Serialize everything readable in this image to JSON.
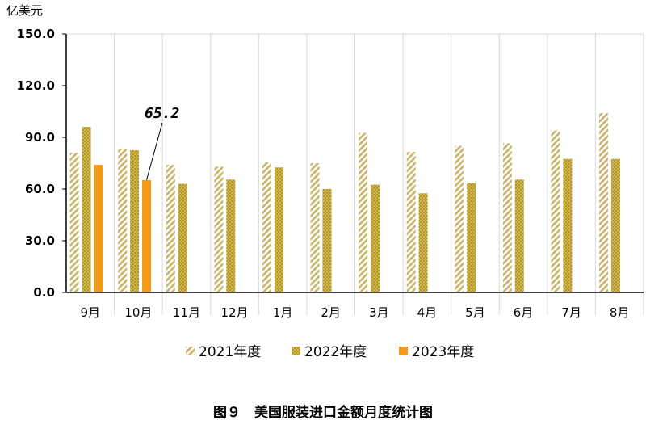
{
  "chart_data": {
    "type": "bar",
    "unit_label": "亿美元",
    "categories": [
      "9月",
      "10月",
      "11月",
      "12月",
      "1月",
      "2月",
      "3月",
      "4月",
      "5月",
      "6月",
      "7月",
      "8月"
    ],
    "series": [
      {
        "name": "2021年度",
        "values": [
          81,
          83.5,
          74,
          73,
          75.5,
          75,
          92.5,
          81.5,
          85,
          86.5,
          94,
          104
        ],
        "color": "#c9b46a",
        "pattern": "diagonal-stripes"
      },
      {
        "name": "2022年度",
        "values": [
          96,
          82.5,
          63,
          65.5,
          72.5,
          60,
          62.5,
          57.5,
          63.5,
          65.5,
          77.5,
          77.5
        ],
        "color": "#b8971e",
        "pattern": "dotted"
      },
      {
        "name": "2023年度",
        "values": [
          74,
          65.2,
          null,
          null,
          null,
          null,
          null,
          null,
          null,
          null,
          null,
          null
        ],
        "color": "#f39a1a",
        "pattern": "solid"
      }
    ],
    "yticks": [
      "0.0",
      "30.0",
      "60.0",
      "90.0",
      "120.0",
      "150.0"
    ],
    "ylim": [
      0,
      150
    ],
    "annotation": {
      "text": "65.2",
      "category": "10月",
      "series": "2023年度",
      "value": 65.2
    },
    "grid": "vertical",
    "legend_position": "bottom",
    "caption": "图９　美国服装进口金额月度统计图"
  }
}
